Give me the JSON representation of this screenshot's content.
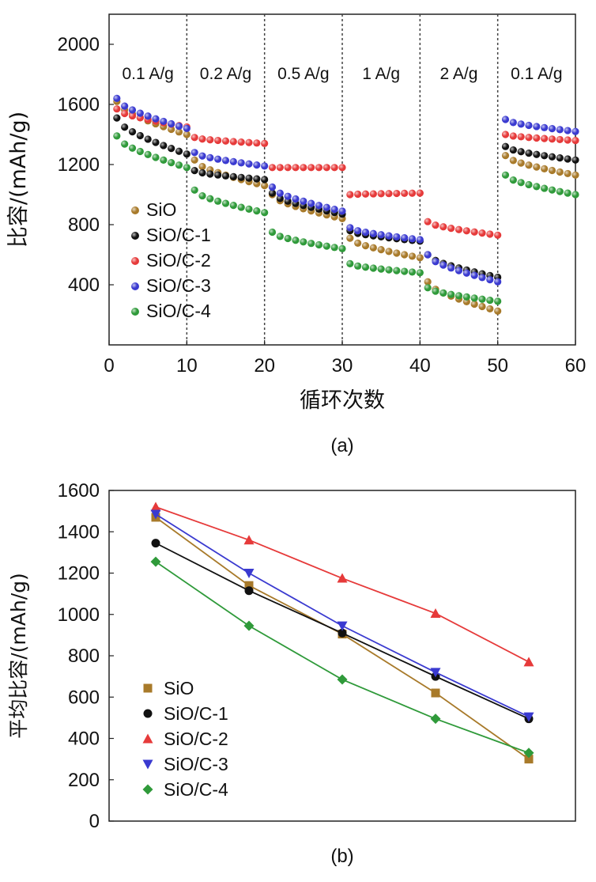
{
  "chart_data": [
    {
      "type": "scatter",
      "panel_label": "(a)",
      "xlabel": "循环次数",
      "ylabel": "比容/(mAh/g)",
      "xlim": [
        0,
        60
      ],
      "ylim": [
        0,
        2200
      ],
      "xticks": [
        0,
        10,
        20,
        30,
        40,
        50,
        60
      ],
      "yticks": [
        400,
        800,
        1200,
        1600,
        2000
      ],
      "dividers": [
        10,
        20,
        30,
        40,
        50
      ],
      "rate_labels": [
        "0.1 A/g",
        "0.2 A/g",
        "0.5 A/g",
        "1 A/g",
        "2 A/g",
        "0.1 A/g"
      ],
      "legend": "center-left",
      "series": [
        {
          "name": "SiO",
          "color": "#a87a2a",
          "segments": [
            [
              1620,
              1400
            ],
            [
              1230,
              1060
            ],
            [
              1000,
              840
            ],
            [
              710,
              580
            ],
            [
              420,
              225
            ],
            [
              1260,
              1130
            ]
          ]
        },
        {
          "name": "SiO/C-1",
          "color": "#111111",
          "segments": [
            [
              1510,
              1270
            ],
            [
              1160,
              1100
            ],
            [
              1010,
              870
            ],
            [
              760,
              690
            ],
            [
              600,
              450
            ],
            [
              1320,
              1230
            ]
          ]
        },
        {
          "name": "SiO/C-2",
          "color": "#e63a3a",
          "segments": [
            [
              1570,
              1450
            ],
            [
              1380,
              1340
            ],
            [
              1180,
              1180
            ],
            [
              1000,
              1010
            ],
            [
              820,
              730
            ],
            [
              1400,
              1360
            ]
          ]
        },
        {
          "name": "SiO/C-3",
          "color": "#3a3ad0",
          "segments": [
            [
              1640,
              1440
            ],
            [
              1280,
              1190
            ],
            [
              1050,
              890
            ],
            [
              780,
              700
            ],
            [
              600,
              420
            ],
            [
              1500,
              1420
            ]
          ]
        },
        {
          "name": "SiO/C-4",
          "color": "#2f9a3a",
          "segments": [
            [
              1390,
              1180
            ],
            [
              1030,
              880
            ],
            [
              750,
              640
            ],
            [
              540,
              480
            ],
            [
              380,
              290
            ],
            [
              1130,
              1000
            ]
          ]
        }
      ]
    },
    {
      "type": "line",
      "panel_label": "(b)",
      "ylabel": "平均比容/(mAh/g)",
      "ylim": [
        0,
        1600
      ],
      "yticks": [
        0,
        200,
        400,
        600,
        800,
        1000,
        1200,
        1400,
        1600
      ],
      "x": [
        1,
        2,
        3,
        4,
        5
      ],
      "legend": "lower-left",
      "series": [
        {
          "name": "SiO",
          "color": "#a87a2a",
          "marker": "square",
          "values": [
            1470,
            1140,
            905,
            620,
            300
          ]
        },
        {
          "name": "SiO/C-1",
          "color": "#111111",
          "marker": "circle",
          "values": [
            1345,
            1115,
            910,
            700,
            495
          ]
        },
        {
          "name": "SiO/C-2",
          "color": "#e63a3a",
          "marker": "triangle-up",
          "values": [
            1520,
            1360,
            1175,
            1005,
            770
          ]
        },
        {
          "name": "SiO/C-3",
          "color": "#3a3ad0",
          "marker": "triangle-down",
          "values": [
            1485,
            1200,
            945,
            720,
            505
          ]
        },
        {
          "name": "SiO/C-4",
          "color": "#2f9a3a",
          "marker": "diamond",
          "values": [
            1255,
            945,
            685,
            495,
            330
          ]
        }
      ]
    }
  ]
}
